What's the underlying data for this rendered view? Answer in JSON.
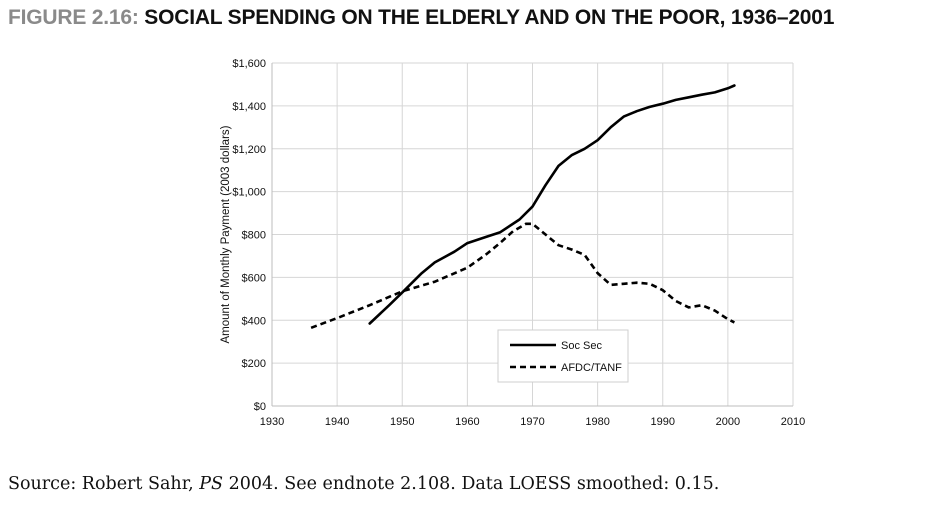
{
  "figure": {
    "label": "FIGURE 2.16:",
    "title": "SOCIAL SPENDING ON THE ELDERLY AND ON THE POOR, 1936–2001"
  },
  "source": {
    "prefix": "Source: Robert Sahr, ",
    "publication": "PS",
    "suffix": " 2004. See endnote 2.108. Data LOESS smoothed: 0.15."
  },
  "chart_data": {
    "type": "line",
    "title": "",
    "xlabel": "",
    "ylabel": "Amount of Monthly Payment (2003 dollars)",
    "xlim": [
      1930,
      2010
    ],
    "ylim": [
      0,
      1600
    ],
    "x_ticks": [
      1930,
      1940,
      1950,
      1960,
      1970,
      1980,
      1990,
      2000,
      2010
    ],
    "y_ticks": [
      0,
      200,
      400,
      600,
      800,
      1000,
      1200,
      1400,
      1600
    ],
    "y_tick_labels": [
      "$0",
      "$200",
      "$400",
      "$600",
      "$800",
      "$1,000",
      "$1,200",
      "$1,400",
      "$1,600"
    ],
    "grid": true,
    "legend_position": "bottom-center",
    "series": [
      {
        "name": "Soc Sec",
        "style": "solid",
        "color": "#000000",
        "points": [
          [
            1945,
            385
          ],
          [
            1948,
            470
          ],
          [
            1950,
            530
          ],
          [
            1953,
            620
          ],
          [
            1955,
            670
          ],
          [
            1958,
            720
          ],
          [
            1960,
            760
          ],
          [
            1963,
            790
          ],
          [
            1965,
            810
          ],
          [
            1968,
            870
          ],
          [
            1970,
            930
          ],
          [
            1972,
            1030
          ],
          [
            1974,
            1120
          ],
          [
            1976,
            1170
          ],
          [
            1978,
            1200
          ],
          [
            1980,
            1240
          ],
          [
            1982,
            1300
          ],
          [
            1984,
            1350
          ],
          [
            1986,
            1375
          ],
          [
            1988,
            1395
          ],
          [
            1990,
            1410
          ],
          [
            1992,
            1428
          ],
          [
            1994,
            1440
          ],
          [
            1996,
            1452
          ],
          [
            1998,
            1463
          ],
          [
            2000,
            1482
          ],
          [
            2001,
            1495
          ]
        ]
      },
      {
        "name": "AFDC/TANF",
        "style": "dashed",
        "color": "#000000",
        "points": [
          [
            1936,
            365
          ],
          [
            1940,
            410
          ],
          [
            1945,
            470
          ],
          [
            1950,
            535
          ],
          [
            1955,
            580
          ],
          [
            1960,
            645
          ],
          [
            1963,
            710
          ],
          [
            1965,
            760
          ],
          [
            1967,
            815
          ],
          [
            1969,
            850
          ],
          [
            1970,
            850
          ],
          [
            1972,
            800
          ],
          [
            1974,
            750
          ],
          [
            1976,
            730
          ],
          [
            1978,
            705
          ],
          [
            1980,
            620
          ],
          [
            1982,
            565
          ],
          [
            1984,
            570
          ],
          [
            1986,
            575
          ],
          [
            1988,
            570
          ],
          [
            1990,
            540
          ],
          [
            1992,
            490
          ],
          [
            1994,
            460
          ],
          [
            1996,
            470
          ],
          [
            1998,
            445
          ],
          [
            2000,
            405
          ],
          [
            2001,
            390
          ]
        ]
      }
    ]
  }
}
